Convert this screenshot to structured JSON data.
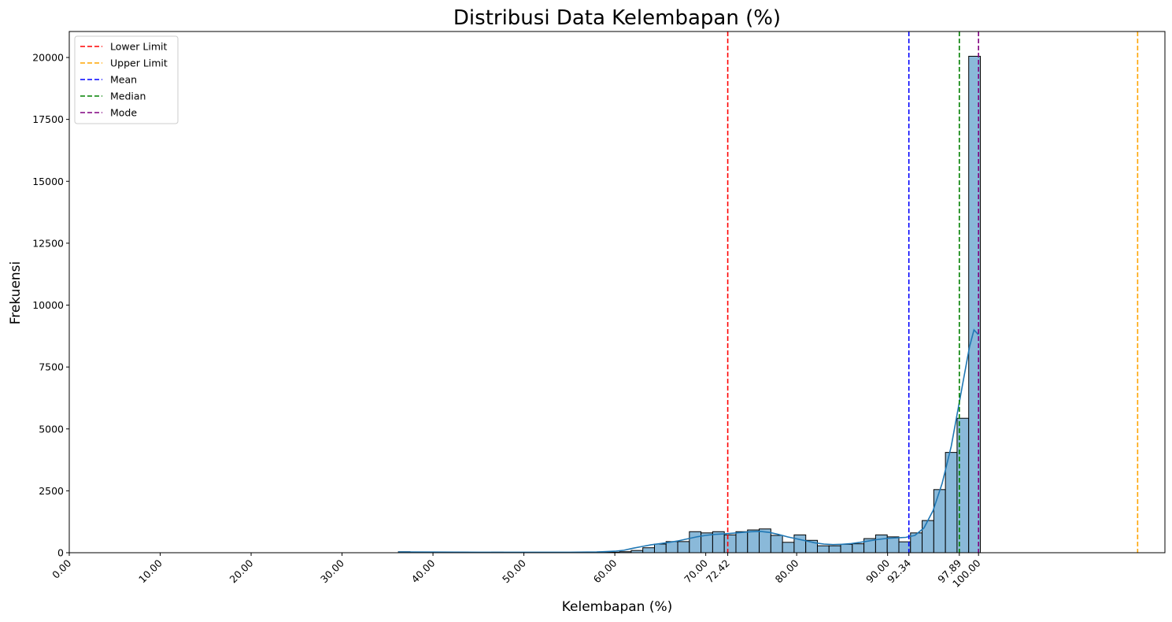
{
  "chart_data": {
    "type": "bar",
    "title": "Distribusi Data Kelembapan (%)",
    "xlabel": "Kelembapan (%)",
    "ylabel": "Frekuensi",
    "xlim": [
      0,
      120.5
    ],
    "ylim": [
      0,
      21050
    ],
    "xticks": [
      "0.00",
      "10.00",
      "20.00",
      "30.00",
      "40.00",
      "50.00",
      "60.00",
      "70.00",
      "72.42",
      "80.00",
      "90.00",
      "92.34",
      "97.89",
      "100.00"
    ],
    "xtick_values": [
      0,
      10,
      20,
      30,
      40,
      50,
      60,
      70,
      72.42,
      80,
      90,
      92.34,
      97.89,
      100
    ],
    "yticks": [
      "0",
      "2500",
      "5000",
      "7500",
      "10000",
      "12500",
      "15000",
      "17500",
      "20000"
    ],
    "ytick_values": [
      0,
      2500,
      5000,
      7500,
      10000,
      12500,
      15000,
      17500,
      20000
    ],
    "grid": false,
    "legend_position": "top-left",
    "bar_color": "#8ab9d9",
    "bar_edge_color": "#000000",
    "kde_color": "#1f77b4",
    "bin_width": 1.28,
    "bins": {
      "start": [
        36.2,
        37.48,
        38.76,
        40.04,
        41.32,
        42.6,
        43.88,
        45.16,
        46.44,
        47.72,
        49.0,
        50.28,
        51.56,
        52.84,
        54.12,
        55.4,
        56.68,
        57.96,
        59.24,
        60.52,
        61.8,
        63.08,
        64.36,
        65.64,
        66.92,
        68.2,
        69.48,
        70.76,
        72.04,
        73.32,
        74.6,
        75.88,
        77.16,
        78.44,
        79.72,
        81.0,
        82.28,
        83.56,
        84.84,
        86.12,
        87.4,
        88.68,
        89.96,
        91.24,
        92.52,
        93.8,
        95.08,
        96.36,
        97.64,
        98.92
      ],
      "counts": [
        40,
        30,
        20,
        20,
        25,
        20,
        15,
        15,
        20,
        15,
        15,
        15,
        10,
        10,
        10,
        10,
        15,
        15,
        20,
        40,
        90,
        200,
        350,
        450,
        450,
        850,
        800,
        850,
        720,
        850,
        920,
        960,
        700,
        420,
        720,
        500,
        280,
        280,
        340,
        360,
        570,
        720,
        640,
        440,
        800,
        1300,
        2550,
        4050,
        5430,
        20050
      ]
    },
    "kde": {
      "x": [
        36.2,
        40,
        45,
        50,
        55,
        58,
        60,
        61,
        62,
        63,
        64,
        65,
        66,
        67,
        68,
        69,
        70,
        71,
        72,
        73,
        74,
        75,
        76,
        77,
        78,
        79,
        80,
        81,
        82,
        83,
        84,
        85,
        86,
        87,
        88,
        89,
        90,
        91,
        92,
        93,
        94,
        95,
        96,
        97,
        98,
        99,
        99.5,
        100
      ],
      "y": [
        30,
        25,
        20,
        20,
        20,
        30,
        60,
        100,
        180,
        250,
        320,
        370,
        420,
        480,
        560,
        640,
        700,
        740,
        760,
        790,
        820,
        850,
        860,
        820,
        740,
        640,
        560,
        480,
        400,
        350,
        330,
        340,
        370,
        420,
        480,
        540,
        580,
        600,
        620,
        700,
        1000,
        1700,
        2800,
        4300,
        6300,
        8300,
        9000,
        8800
      ]
    },
    "vlines": [
      {
        "name": "Lower Limit",
        "value": 72.42,
        "color": "#ff0000"
      },
      {
        "name": "Upper Limit",
        "value": 117.5,
        "color": "#ffa500"
      },
      {
        "name": "Mean",
        "value": 92.34,
        "color": "#0000ff"
      },
      {
        "name": "Median",
        "value": 97.89,
        "color": "#008000"
      },
      {
        "name": "Mode",
        "value": 100.0,
        "color": "#800080"
      }
    ]
  }
}
